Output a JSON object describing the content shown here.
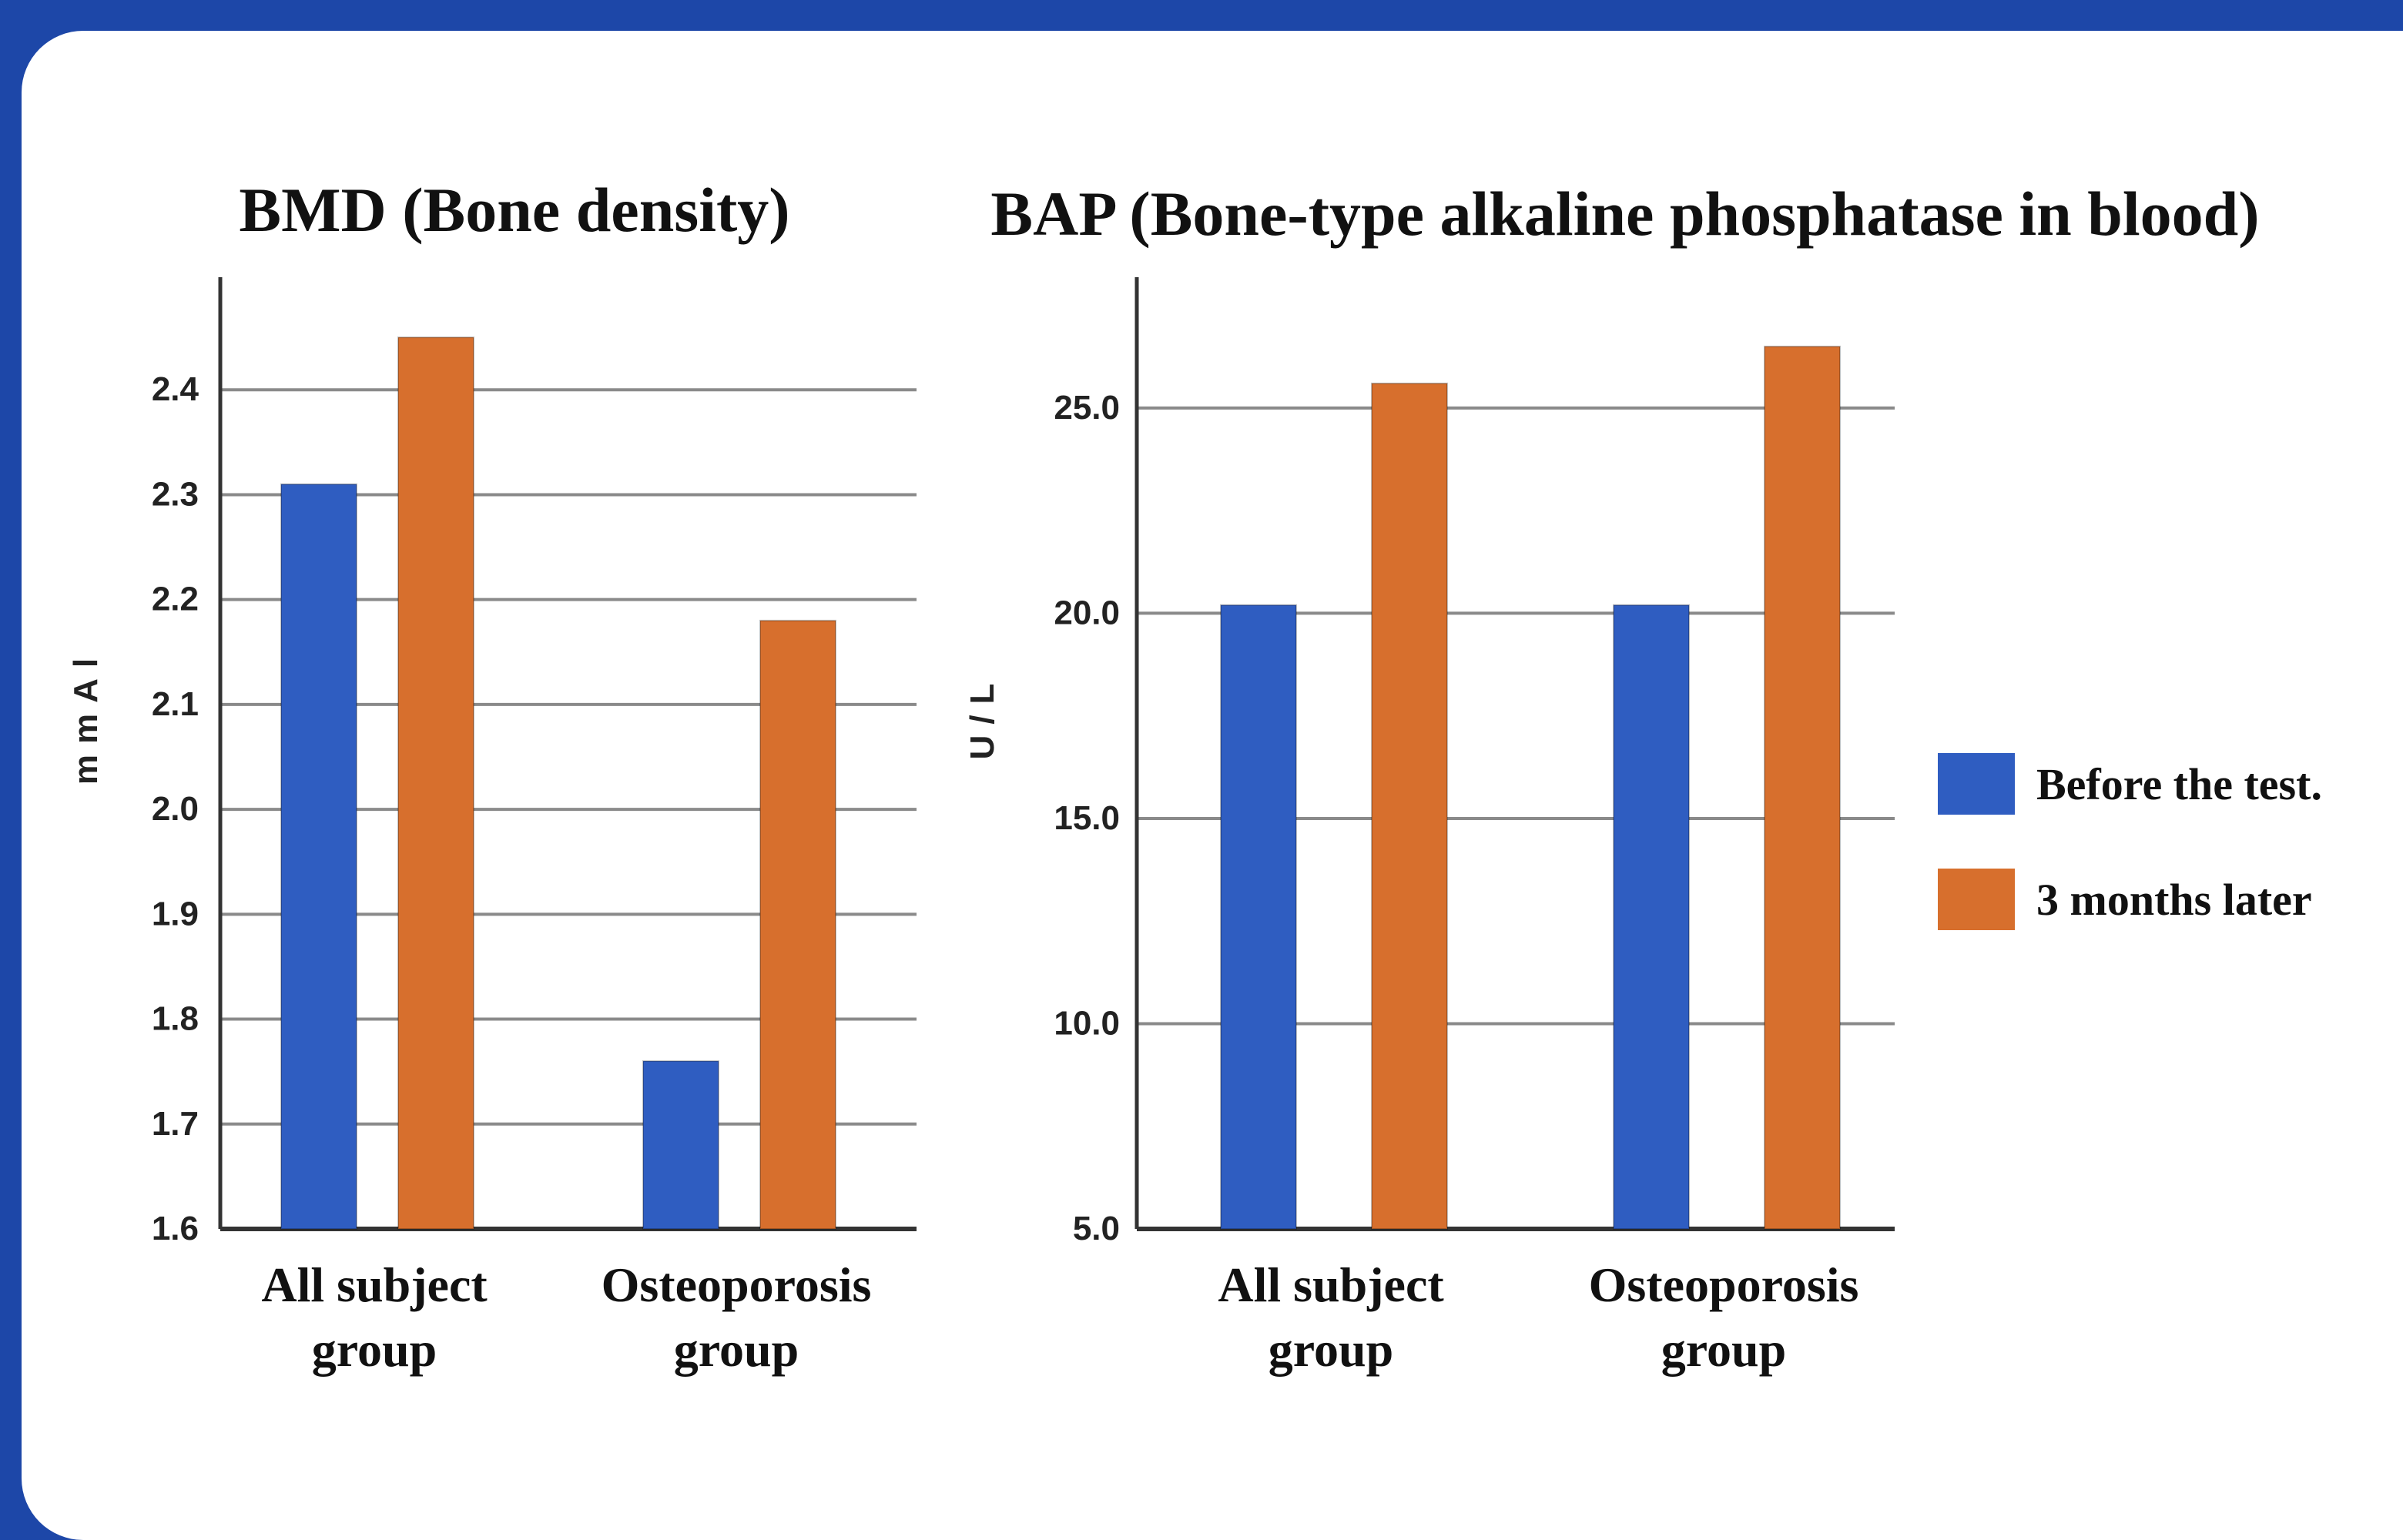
{
  "colors": {
    "background": "#1d47a8",
    "panel": "#ffffff",
    "before": "#2f5dc1",
    "after": "#d76f2d",
    "grid": "#8a8a8a",
    "axis": "#333333"
  },
  "legend": {
    "items": [
      {
        "label": "Before the test.",
        "color": "#2f5dc1"
      },
      {
        "label": "3 months later",
        "color": "#d76f2d"
      }
    ],
    "placement": "right"
  },
  "chart_data": [
    {
      "type": "bar",
      "title": "BMD (Bone density)",
      "ylabel": "mmAl",
      "ylim": [
        1.6,
        2.5
      ],
      "yticks": [
        "1.6",
        "1.7",
        "1.8",
        "1.9",
        "2.0",
        "2.1",
        "2.2",
        "2.3",
        "2.4"
      ],
      "grid": true,
      "categories": [
        [
          "All subject",
          "group"
        ],
        [
          "Osteoporosis",
          "group"
        ]
      ],
      "series": [
        {
          "name": "Before the test.",
          "values": [
            2.31,
            1.76
          ]
        },
        {
          "name": "3 months later",
          "values": [
            2.45,
            2.18
          ]
        }
      ]
    },
    {
      "type": "bar",
      "title": "BAP (Bone-type alkaline phosphatase in blood)",
      "ylabel": "U/L",
      "ylim": [
        5.0,
        28.0
      ],
      "yticks": [
        "5.0",
        "10.0",
        "15.0",
        "20.0",
        "25.0"
      ],
      "grid": true,
      "categories": [
        [
          "All subject",
          "group"
        ],
        [
          "Osteoporosis",
          "group"
        ]
      ],
      "series": [
        {
          "name": "Before the test.",
          "values": [
            20.2,
            20.2
          ]
        },
        {
          "name": "3 months later",
          "values": [
            25.6,
            26.5
          ]
        }
      ]
    }
  ]
}
